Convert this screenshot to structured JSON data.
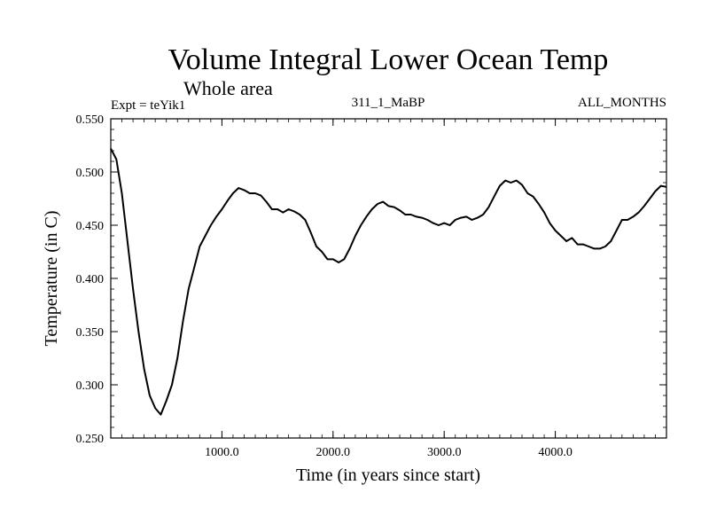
{
  "chart_data": {
    "type": "line",
    "title": "Volume Integral Lower Ocean Temp",
    "subtitle": "Whole area",
    "annotations": {
      "left": "Expt = teYik1",
      "center": "311_1_MaBP",
      "right": "ALL_MONTHS"
    },
    "xlabel": "Time (in years since start)",
    "ylabel": "Temperature (in C)",
    "xlim": [
      0,
      5000
    ],
    "ylim": [
      0.25,
      0.55
    ],
    "xticks": [
      1000,
      2000,
      3000,
      4000
    ],
    "xtick_labels": [
      "1000.0",
      "2000.0",
      "3000.0",
      "4000.0"
    ],
    "yticks": [
      0.25,
      0.3,
      0.35,
      0.4,
      0.45,
      0.5,
      0.55
    ],
    "ytick_labels": [
      "0.250",
      "0.300",
      "0.350",
      "0.400",
      "0.450",
      "0.500",
      "0.550"
    ],
    "grid": false,
    "series": [
      {
        "name": "Temperature",
        "color": "#000000",
        "x": [
          0,
          50,
          100,
          150,
          200,
          250,
          300,
          350,
          400,
          450,
          500,
          550,
          600,
          650,
          700,
          750,
          800,
          850,
          900,
          950,
          1000,
          1050,
          1100,
          1150,
          1200,
          1250,
          1300,
          1350,
          1400,
          1450,
          1500,
          1550,
          1600,
          1650,
          1700,
          1750,
          1800,
          1850,
          1900,
          1950,
          2000,
          2050,
          2100,
          2150,
          2200,
          2250,
          2300,
          2350,
          2400,
          2450,
          2500,
          2550,
          2600,
          2650,
          2700,
          2750,
          2800,
          2850,
          2900,
          2950,
          3000,
          3050,
          3100,
          3150,
          3200,
          3250,
          3300,
          3350,
          3400,
          3450,
          3500,
          3550,
          3600,
          3650,
          3700,
          3750,
          3800,
          3850,
          3900,
          3950,
          4000,
          4050,
          4100,
          4150,
          4200,
          4250,
          4300,
          4350,
          4400,
          4450,
          4500,
          4550,
          4600,
          4650,
          4700,
          4750,
          4800,
          4850,
          4900,
          4950,
          5000
        ],
        "values": [
          0.522,
          0.512,
          0.48,
          0.435,
          0.39,
          0.35,
          0.315,
          0.29,
          0.278,
          0.272,
          0.285,
          0.3,
          0.325,
          0.36,
          0.39,
          0.41,
          0.43,
          0.44,
          0.45,
          0.458,
          0.465,
          0.473,
          0.48,
          0.485,
          0.483,
          0.48,
          0.48,
          0.478,
          0.472,
          0.465,
          0.465,
          0.462,
          0.465,
          0.463,
          0.46,
          0.455,
          0.443,
          0.43,
          0.425,
          0.418,
          0.418,
          0.415,
          0.418,
          0.428,
          0.44,
          0.45,
          0.458,
          0.465,
          0.47,
          0.472,
          0.468,
          0.467,
          0.464,
          0.46,
          0.46,
          0.458,
          0.457,
          0.455,
          0.452,
          0.45,
          0.452,
          0.45,
          0.455,
          0.457,
          0.458,
          0.455,
          0.457,
          0.46,
          0.467,
          0.477,
          0.487,
          0.492,
          0.49,
          0.492,
          0.488,
          0.48,
          0.477,
          0.47,
          0.462,
          0.452,
          0.445,
          0.44,
          0.435,
          0.438,
          0.432,
          0.432,
          0.43,
          0.428,
          0.428,
          0.43,
          0.435,
          0.445,
          0.455,
          0.455,
          0.458,
          0.462,
          0.468,
          0.475,
          0.482,
          0.487,
          0.486
        ]
      }
    ]
  }
}
